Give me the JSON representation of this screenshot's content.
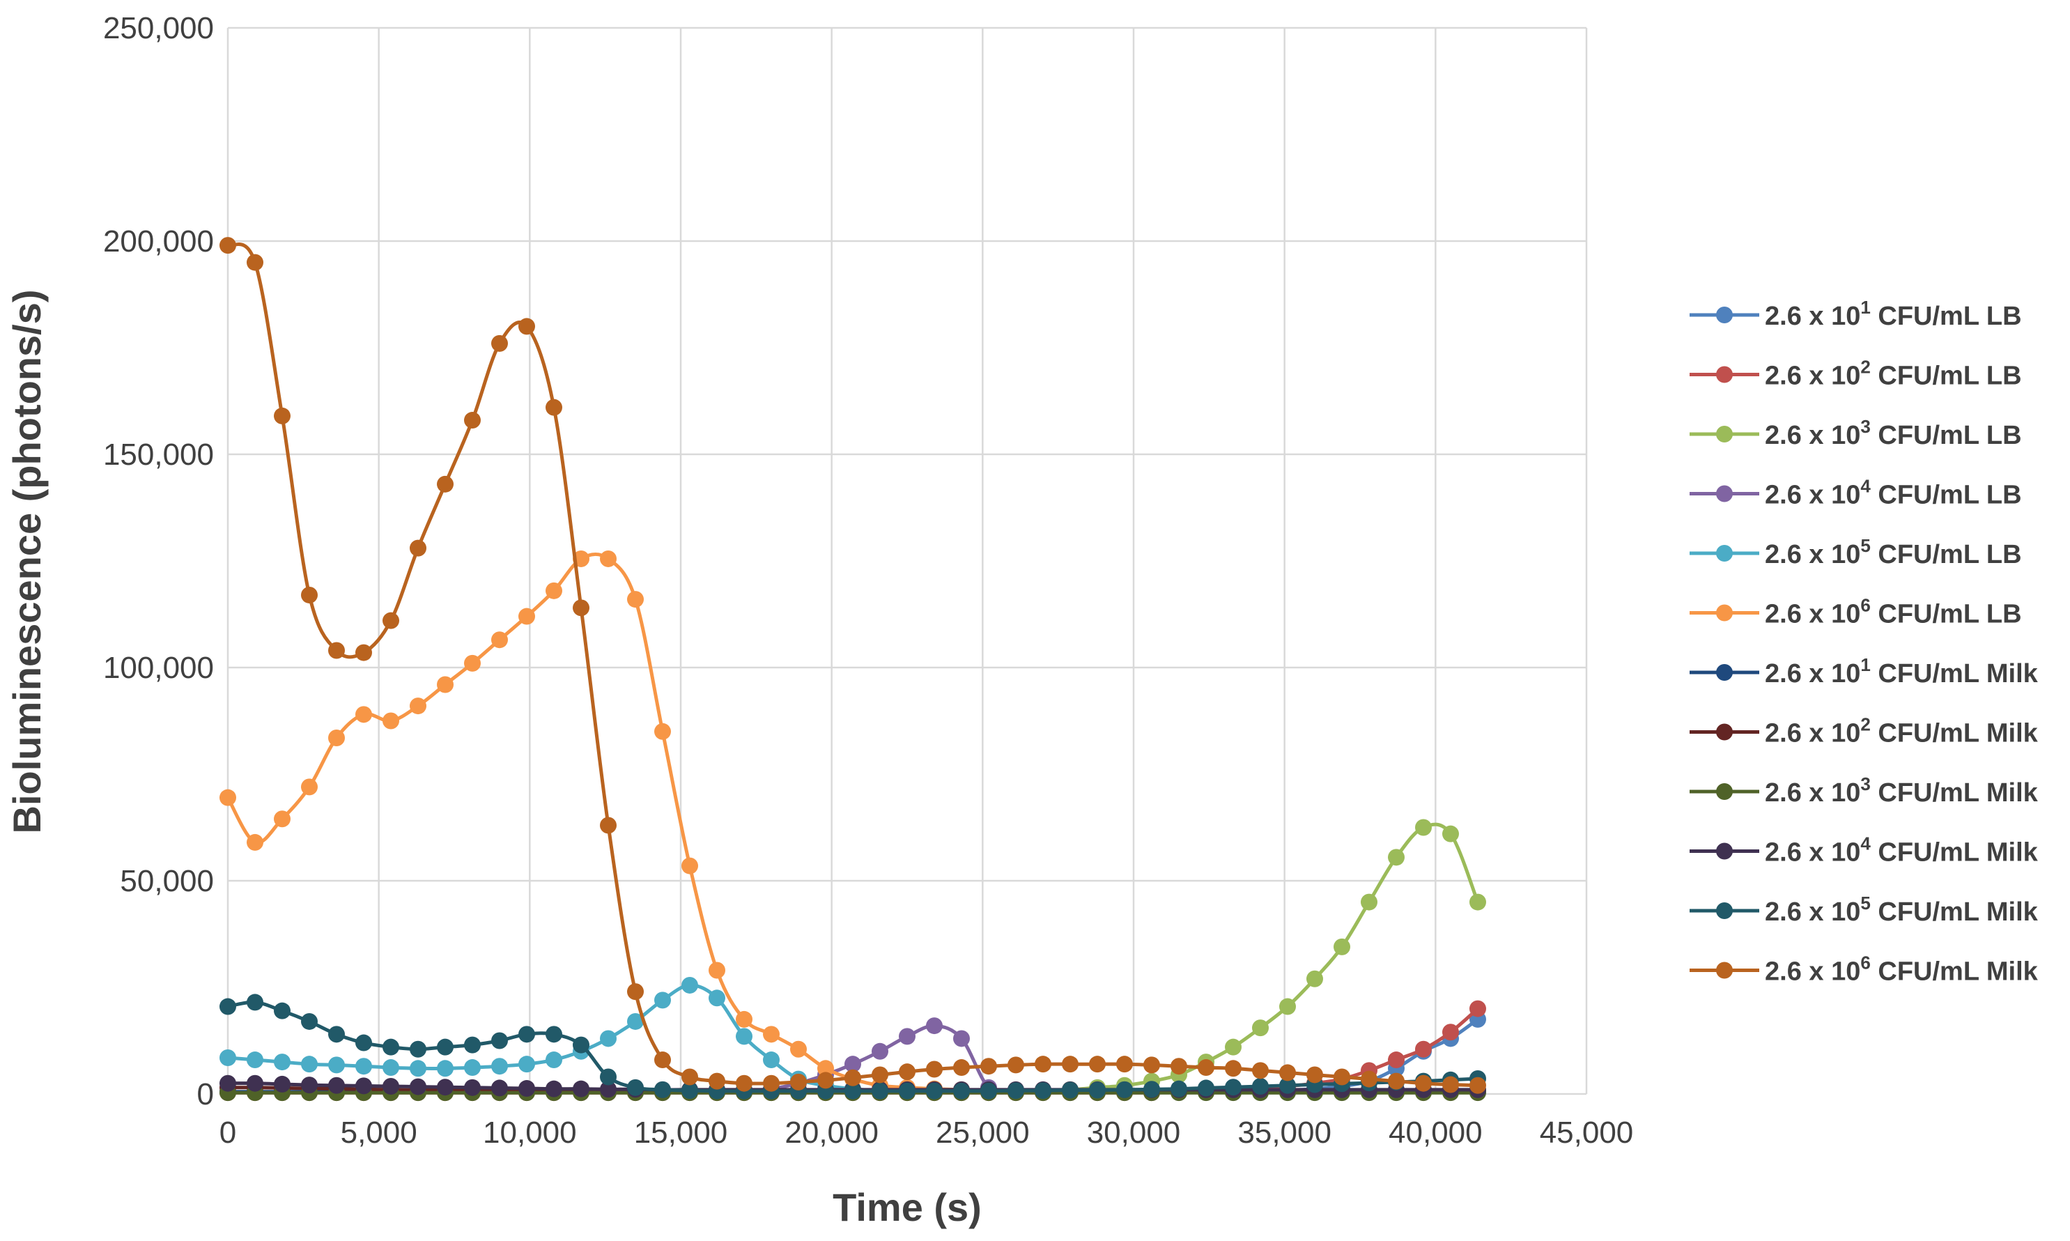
{
  "chart_data": {
    "type": "line",
    "title": "",
    "xlabel": "Time (s)",
    "ylabel": "Bioluminescence (photons/s)",
    "xlim": [
      0,
      45000
    ],
    "ylim": [
      0,
      250000
    ],
    "x_ticks": [
      "0",
      "5000",
      "10000",
      "15000",
      "20000",
      "25000",
      "30000",
      "35000",
      "40000",
      "45000"
    ],
    "y_ticks": [
      "0",
      "50000",
      "100000",
      "150000",
      "200000",
      "250000"
    ],
    "grid": true,
    "legend_position": "right",
    "x": [
      0,
      900,
      1800,
      2700,
      3600,
      4500,
      5400,
      6300,
      7200,
      8100,
      9000,
      9900,
      10800,
      11700,
      12600,
      13500,
      14400,
      15300,
      16200,
      17100,
      18000,
      18900,
      19800,
      20700,
      21600,
      22500,
      23400,
      24300,
      25200,
      26100,
      27000,
      27900,
      28800,
      29700,
      30600,
      31500,
      32400,
      33300,
      34200,
      35100,
      36000,
      36900,
      37800,
      38700,
      39600,
      40500,
      41400
    ],
    "series": [
      {
        "name_prefix": "2.6 x 10",
        "exponent": "1",
        "name_suffix": " CFU/mL LB",
        "color": "#4f81bd",
        "values": [
          500,
          500,
          500,
          500,
          500,
          500,
          500,
          500,
          500,
          500,
          500,
          500,
          500,
          500,
          500,
          500,
          500,
          500,
          500,
          500,
          500,
          500,
          500,
          500,
          500,
          500,
          500,
          500,
          500,
          500,
          500,
          500,
          500,
          500,
          500,
          500,
          500,
          600,
          700,
          900,
          1200,
          1800,
          3000,
          6000,
          10000,
          13000,
          17500
        ]
      },
      {
        "name_prefix": "2.6 x 10",
        "exponent": "2",
        "name_suffix": " CFU/mL LB",
        "color": "#c0504d",
        "values": [
          300,
          300,
          300,
          300,
          300,
          300,
          300,
          300,
          300,
          300,
          300,
          300,
          300,
          300,
          300,
          300,
          300,
          300,
          300,
          300,
          300,
          300,
          300,
          300,
          300,
          300,
          300,
          300,
          300,
          300,
          300,
          300,
          300,
          300,
          300,
          400,
          600,
          900,
          1300,
          1800,
          2500,
          3500,
          5500,
          8000,
          10500,
          14500,
          20000
        ]
      },
      {
        "name_prefix": "2.6 x 10",
        "exponent": "3",
        "name_suffix": " CFU/mL LB",
        "color": "#9bbb59",
        "values": [
          400,
          400,
          400,
          400,
          400,
          400,
          400,
          400,
          400,
          400,
          400,
          400,
          400,
          400,
          400,
          400,
          400,
          400,
          400,
          400,
          400,
          400,
          400,
          400,
          400,
          400,
          400,
          400,
          500,
          600,
          800,
          1000,
          1500,
          2000,
          3000,
          4500,
          7500,
          11000,
          15500,
          20500,
          27000,
          34500,
          45000,
          55500,
          62500,
          61000,
          45000
        ]
      },
      {
        "name_prefix": "2.6 x 10",
        "exponent": "4",
        "name_suffix": " CFU/mL LB",
        "color": "#8064a2",
        "values": [
          500,
          500,
          500,
          500,
          500,
          500,
          500,
          500,
          500,
          500,
          500,
          500,
          500,
          500,
          500,
          500,
          500,
          500,
          500,
          800,
          1200,
          2500,
          4500,
          7000,
          10000,
          13500,
          16000,
          13000,
          1500,
          500,
          500,
          500,
          500,
          500,
          500,
          500,
          500,
          500,
          500,
          500,
          500,
          500,
          500,
          500,
          500,
          500,
          500
        ]
      },
      {
        "name_prefix": "2.6 x 10",
        "exponent": "5",
        "name_suffix": " CFU/mL LB",
        "color": "#4bacc6",
        "values": [
          8500,
          8000,
          7500,
          7000,
          6800,
          6500,
          6200,
          6000,
          6000,
          6200,
          6500,
          7000,
          8000,
          10000,
          13000,
          17000,
          22000,
          25500,
          22500,
          13500,
          8000,
          3500,
          2000,
          1200,
          800,
          600,
          500,
          500,
          500,
          500,
          500,
          500,
          500,
          500,
          500,
          500,
          500,
          500,
          500,
          500,
          500,
          500,
          500,
          500,
          500,
          500,
          500
        ]
      },
      {
        "name_prefix": "2.6 x 10",
        "exponent": "6",
        "name_suffix": " CFU/mL LB",
        "color": "#f79646",
        "values": [
          69500,
          59000,
          64500,
          72000,
          83500,
          89000,
          87500,
          91000,
          96000,
          101000,
          106500,
          112000,
          118000,
          125500,
          125500,
          116000,
          85000,
          53500,
          29000,
          17500,
          14000,
          10500,
          6000,
          3500,
          2000,
          1500,
          1200,
          1000,
          900,
          800,
          800,
          800,
          800,
          800,
          800,
          800,
          800,
          800,
          800,
          800,
          800,
          800,
          800,
          800,
          800,
          800,
          800
        ]
      },
      {
        "name_prefix": "2.6 x 10",
        "exponent": "1",
        "name_suffix": " CFU/mL Milk",
        "color": "#1f497d",
        "values": [
          500,
          500,
          500,
          500,
          500,
          500,
          500,
          500,
          500,
          500,
          500,
          500,
          500,
          500,
          500,
          500,
          500,
          500,
          500,
          500,
          500,
          500,
          500,
          500,
          500,
          500,
          500,
          500,
          500,
          500,
          500,
          500,
          500,
          500,
          500,
          500,
          500,
          500,
          500,
          500,
          500,
          500,
          500,
          500,
          500,
          500,
          500
        ]
      },
      {
        "name_prefix": "2.6 x 10",
        "exponent": "2",
        "name_suffix": " CFU/mL Milk",
        "color": "#632523",
        "values": [
          1500,
          1500,
          1400,
          1300,
          1200,
          1100,
          1000,
          900,
          900,
          800,
          800,
          800,
          700,
          700,
          700,
          700,
          700,
          700,
          700,
          700,
          700,
          700,
          700,
          700,
          700,
          700,
          700,
          700,
          700,
          700,
          700,
          700,
          700,
          700,
          700,
          700,
          700,
          700,
          700,
          700,
          700,
          700,
          700,
          700,
          700,
          700,
          700
        ]
      },
      {
        "name_prefix": "2.6 x 10",
        "exponent": "3",
        "name_suffix": " CFU/mL Milk",
        "color": "#4f6228",
        "values": [
          300,
          300,
          300,
          300,
          300,
          300,
          300,
          300,
          300,
          300,
          300,
          300,
          300,
          300,
          300,
          300,
          300,
          300,
          300,
          300,
          300,
          300,
          300,
          300,
          300,
          300,
          300,
          300,
          300,
          300,
          300,
          300,
          300,
          300,
          300,
          300,
          300,
          300,
          300,
          300,
          300,
          300,
          300,
          300,
          300,
          300,
          300
        ]
      },
      {
        "name_prefix": "2.6 x 10",
        "exponent": "4",
        "name_suffix": " CFU/mL Milk",
        "color": "#3f3151",
        "values": [
          2500,
          2500,
          2300,
          2100,
          2000,
          1900,
          1800,
          1700,
          1600,
          1500,
          1400,
          1300,
          1200,
          1200,
          1100,
          1100,
          1000,
          1000,
          1000,
          1000,
          1000,
          1000,
          1000,
          1000,
          1000,
          1000,
          1000,
          1000,
          1000,
          1000,
          1000,
          1000,
          1000,
          1000,
          1000,
          1000,
          1000,
          1000,
          1000,
          1000,
          1000,
          1000,
          1000,
          1000,
          1000,
          1000,
          1000
        ]
      },
      {
        "name_prefix": "2.6 x 10",
        "exponent": "5",
        "name_suffix": " CFU/mL Milk",
        "color": "#215968",
        "values": [
          20500,
          21500,
          19500,
          17000,
          14000,
          12000,
          11000,
          10500,
          11000,
          11500,
          12500,
          14000,
          14000,
          11500,
          4000,
          1500,
          1000,
          800,
          700,
          700,
          700,
          700,
          700,
          700,
          700,
          700,
          700,
          700,
          700,
          800,
          800,
          900,
          900,
          1000,
          1100,
          1200,
          1400,
          1600,
          1800,
          2000,
          2200,
          2400,
          2600,
          2800,
          3000,
          3300,
          3600
        ]
      },
      {
        "name_prefix": "2.6 x 10",
        "exponent": "6",
        "name_suffix": " CFU/mL Milk",
        "color": "#b9631f",
        "values": [
          199000,
          195000,
          159000,
          117000,
          104000,
          103500,
          111000,
          128000,
          143000,
          158000,
          176000,
          180000,
          161000,
          114000,
          63000,
          24000,
          8000,
          4000,
          3000,
          2500,
          2500,
          2800,
          3200,
          3800,
          4500,
          5200,
          5800,
          6200,
          6500,
          6800,
          7000,
          7000,
          7000,
          7000,
          6800,
          6500,
          6200,
          6000,
          5500,
          5000,
          4500,
          4000,
          3500,
          3000,
          2500,
          2200,
          2000
        ]
      }
    ]
  }
}
